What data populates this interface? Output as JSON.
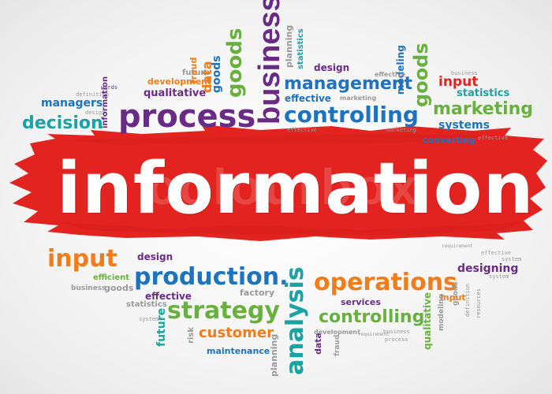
{
  "title": "information",
  "watermark": "colourbox",
  "colors": {
    "banner": "#e3231f",
    "banner_dark": "#c81a17",
    "purple": "#6a2b86",
    "green": "#69b13f",
    "teal": "#1aa3a3",
    "blue": "#1e73be",
    "orange": "#f07c1a",
    "gray": "#9a9a9a"
  },
  "words": [
    {
      "text": "business",
      "color": "#6a2b86"
    },
    {
      "text": "planning",
      "color": "#9a9a9a"
    },
    {
      "text": "statistics",
      "color": "#1aa3a3"
    },
    {
      "text": "design",
      "color": "#6a2b86"
    },
    {
      "text": "goods",
      "color": "#69b13f"
    },
    {
      "text": "modeling",
      "color": "#1e73be"
    },
    {
      "text": "goods",
      "color": "#69b13f"
    },
    {
      "text": "business",
      "color": "#9a9a9a"
    },
    {
      "text": "input",
      "color": "#e3231f"
    },
    {
      "text": "statistics",
      "color": "#1aa3a3"
    },
    {
      "text": "future",
      "color": "#9a9a9a"
    },
    {
      "text": "fraud",
      "color": "#f07c1a"
    },
    {
      "text": "data",
      "color": "#f07c1a"
    },
    {
      "text": "goods",
      "color": "#1e73be"
    },
    {
      "text": "development",
      "color": "#f07c1a"
    },
    {
      "text": "management",
      "color": "#1e73be"
    },
    {
      "text": "effective",
      "color": "#9a9a9a"
    },
    {
      "text": "qualitative",
      "color": "#6a2b86"
    },
    {
      "text": "effective",
      "color": "#1e73be"
    },
    {
      "text": "marketing",
      "color": "#9a9a9a"
    },
    {
      "text": "marketing",
      "color": "#69b13f"
    },
    {
      "text": "words",
      "color": "#6a2b86"
    },
    {
      "text": "definition",
      "color": "#9a9a9a"
    },
    {
      "text": "managers",
      "color": "#1e73be"
    },
    {
      "text": "design",
      "color": "#9a9a9a"
    },
    {
      "text": "information",
      "color": "#6a2b86"
    },
    {
      "text": "process",
      "color": "#6a2b86"
    },
    {
      "text": "controlling",
      "color": "#1e73be"
    },
    {
      "text": "systems",
      "color": "#1e73be"
    },
    {
      "text": "decision",
      "color": "#1aa3a3"
    },
    {
      "text": "effective",
      "color": "#9a9a9a"
    },
    {
      "text": "marketing",
      "color": "#9a9a9a"
    },
    {
      "text": "converting",
      "color": "#1e73be"
    },
    {
      "text": "effective",
      "color": "#9a9a9a"
    },
    {
      "text": "input",
      "color": "#f07c1a"
    },
    {
      "text": "design",
      "color": "#6a2b86"
    },
    {
      "text": "requirement",
      "color": "#9a9a9a"
    },
    {
      "text": "effective",
      "color": "#9a9a9a"
    },
    {
      "text": "system",
      "color": "#9a9a9a"
    },
    {
      "text": "designing",
      "color": "#6a2b86"
    },
    {
      "text": "efficient",
      "color": "#69b13f"
    },
    {
      "text": "system",
      "color": "#9a9a9a"
    },
    {
      "text": "business",
      "color": "#9a9a9a"
    },
    {
      "text": "goods",
      "color": "#9a9a9a"
    },
    {
      "text": "production.",
      "color": "#1e73be"
    },
    {
      "text": "operations",
      "color": "#f07c1a"
    },
    {
      "text": "goods",
      "color": "#9a9a9a"
    },
    {
      "text": "statistics",
      "color": "#9a9a9a"
    },
    {
      "text": "effective",
      "color": "#6a2b86"
    },
    {
      "text": "factory",
      "color": "#9a9a9a"
    },
    {
      "text": "strategy",
      "color": "#69b13f"
    },
    {
      "text": "analysis",
      "color": "#1aa3a3"
    },
    {
      "text": "services",
      "color": "#6a2b86"
    },
    {
      "text": "input",
      "color": "#f07c1a"
    },
    {
      "text": "definition",
      "color": "#9a9a9a"
    },
    {
      "text": "resources",
      "color": "#9a9a9a"
    },
    {
      "text": "future",
      "color": "#1aa3a3"
    },
    {
      "text": "system",
      "color": "#9a9a9a"
    },
    {
      "text": "risk",
      "color": "#9a9a9a"
    },
    {
      "text": "customer",
      "color": "#f07c1a"
    },
    {
      "text": "controlling",
      "color": "#69b13f"
    },
    {
      "text": "modeling",
      "color": "#9a9a9a"
    },
    {
      "text": "qualitative",
      "color": "#69b13f"
    },
    {
      "text": "planning",
      "color": "#9a9a9a"
    },
    {
      "text": "data",
      "color": "#6a2b86"
    },
    {
      "text": "development",
      "color": "#9a9a9a"
    },
    {
      "text": "fraud",
      "color": "#9a9a9a"
    },
    {
      "text": "requirement",
      "color": "#9a9a9a"
    },
    {
      "text": "maintenance",
      "color": "#1e73be"
    },
    {
      "text": "process",
      "color": "#9a9a9a"
    },
    {
      "text": "business",
      "color": "#9a9a9a"
    }
  ]
}
